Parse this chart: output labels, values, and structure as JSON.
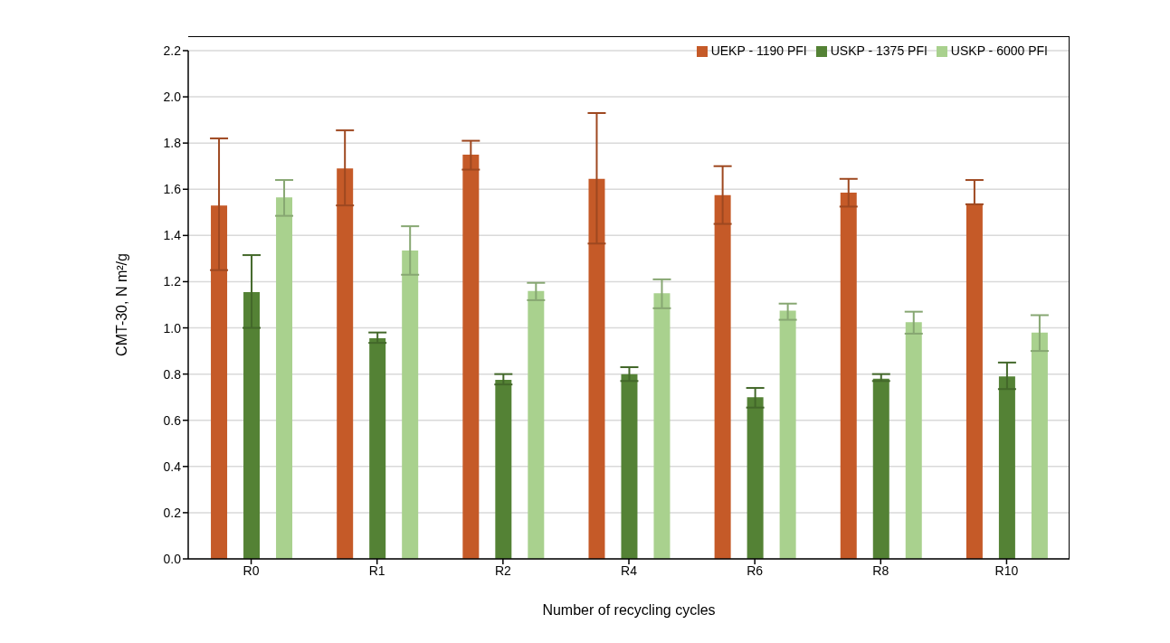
{
  "chart_data": {
    "type": "bar",
    "xlabel": "Number of recycling cycles",
    "ylabel": "CMT-30, N m²/g",
    "categories": [
      "R0",
      "R1",
      "R2",
      "R4",
      "R6",
      "R8",
      "R10"
    ],
    "series": [
      {
        "name": "UEKP - 1190 PFI",
        "color": "#c55a28",
        "values": [
          1.53,
          1.69,
          1.75,
          1.645,
          1.575,
          1.585,
          1.535
        ],
        "errors": [
          [
            1.25,
            1.82
          ],
          [
            1.53,
            1.855
          ],
          [
            1.685,
            1.81
          ],
          [
            1.365,
            1.93
          ],
          [
            1.45,
            1.7
          ],
          [
            1.525,
            1.645
          ],
          [
            1.535,
            1.64
          ]
        ]
      },
      {
        "name": "USKP - 1375 PFI",
        "color": "#548235",
        "values": [
          1.155,
          0.955,
          0.775,
          0.8,
          0.7,
          0.78,
          0.79
        ],
        "errors": [
          [
            1.0,
            1.315
          ],
          [
            0.935,
            0.98
          ],
          [
            0.755,
            0.8
          ],
          [
            0.77,
            0.83
          ],
          [
            0.655,
            0.74
          ],
          [
            0.77,
            0.8
          ],
          [
            0.735,
            0.85
          ]
        ]
      },
      {
        "name": "USKP - 6000 PFI",
        "color": "#a9d18e",
        "values": [
          1.565,
          1.335,
          1.16,
          1.15,
          1.075,
          1.025,
          0.98
        ],
        "errors": [
          [
            1.485,
            1.64
          ],
          [
            1.23,
            1.44
          ],
          [
            1.12,
            1.195
          ],
          [
            1.085,
            1.21
          ],
          [
            1.035,
            1.105
          ],
          [
            0.975,
            1.07
          ],
          [
            0.9,
            1.055
          ]
        ]
      }
    ],
    "ylim": [
      0,
      2.2
    ],
    "yticks": [
      {
        "value": 0,
        "label": "0.0"
      },
      {
        "value": 0.2,
        "label": "0.2"
      },
      {
        "value": 0.4,
        "label": "0.4"
      },
      {
        "value": 0.6,
        "label": "0.6"
      },
      {
        "value": 0.8,
        "label": "0.8"
      },
      {
        "value": 1,
        "label": "1.0"
      },
      {
        "value": 1.2,
        "label": "1.2"
      },
      {
        "value": 1.4,
        "label": "1.4"
      },
      {
        "value": 1.6,
        "label": "1.6"
      },
      {
        "value": 1.8,
        "label": "1.8"
      },
      {
        "value": 2,
        "label": "2.0"
      },
      {
        "value": 2.2,
        "label": "2.2"
      }
    ],
    "grid": "y",
    "legend": "top right"
  }
}
